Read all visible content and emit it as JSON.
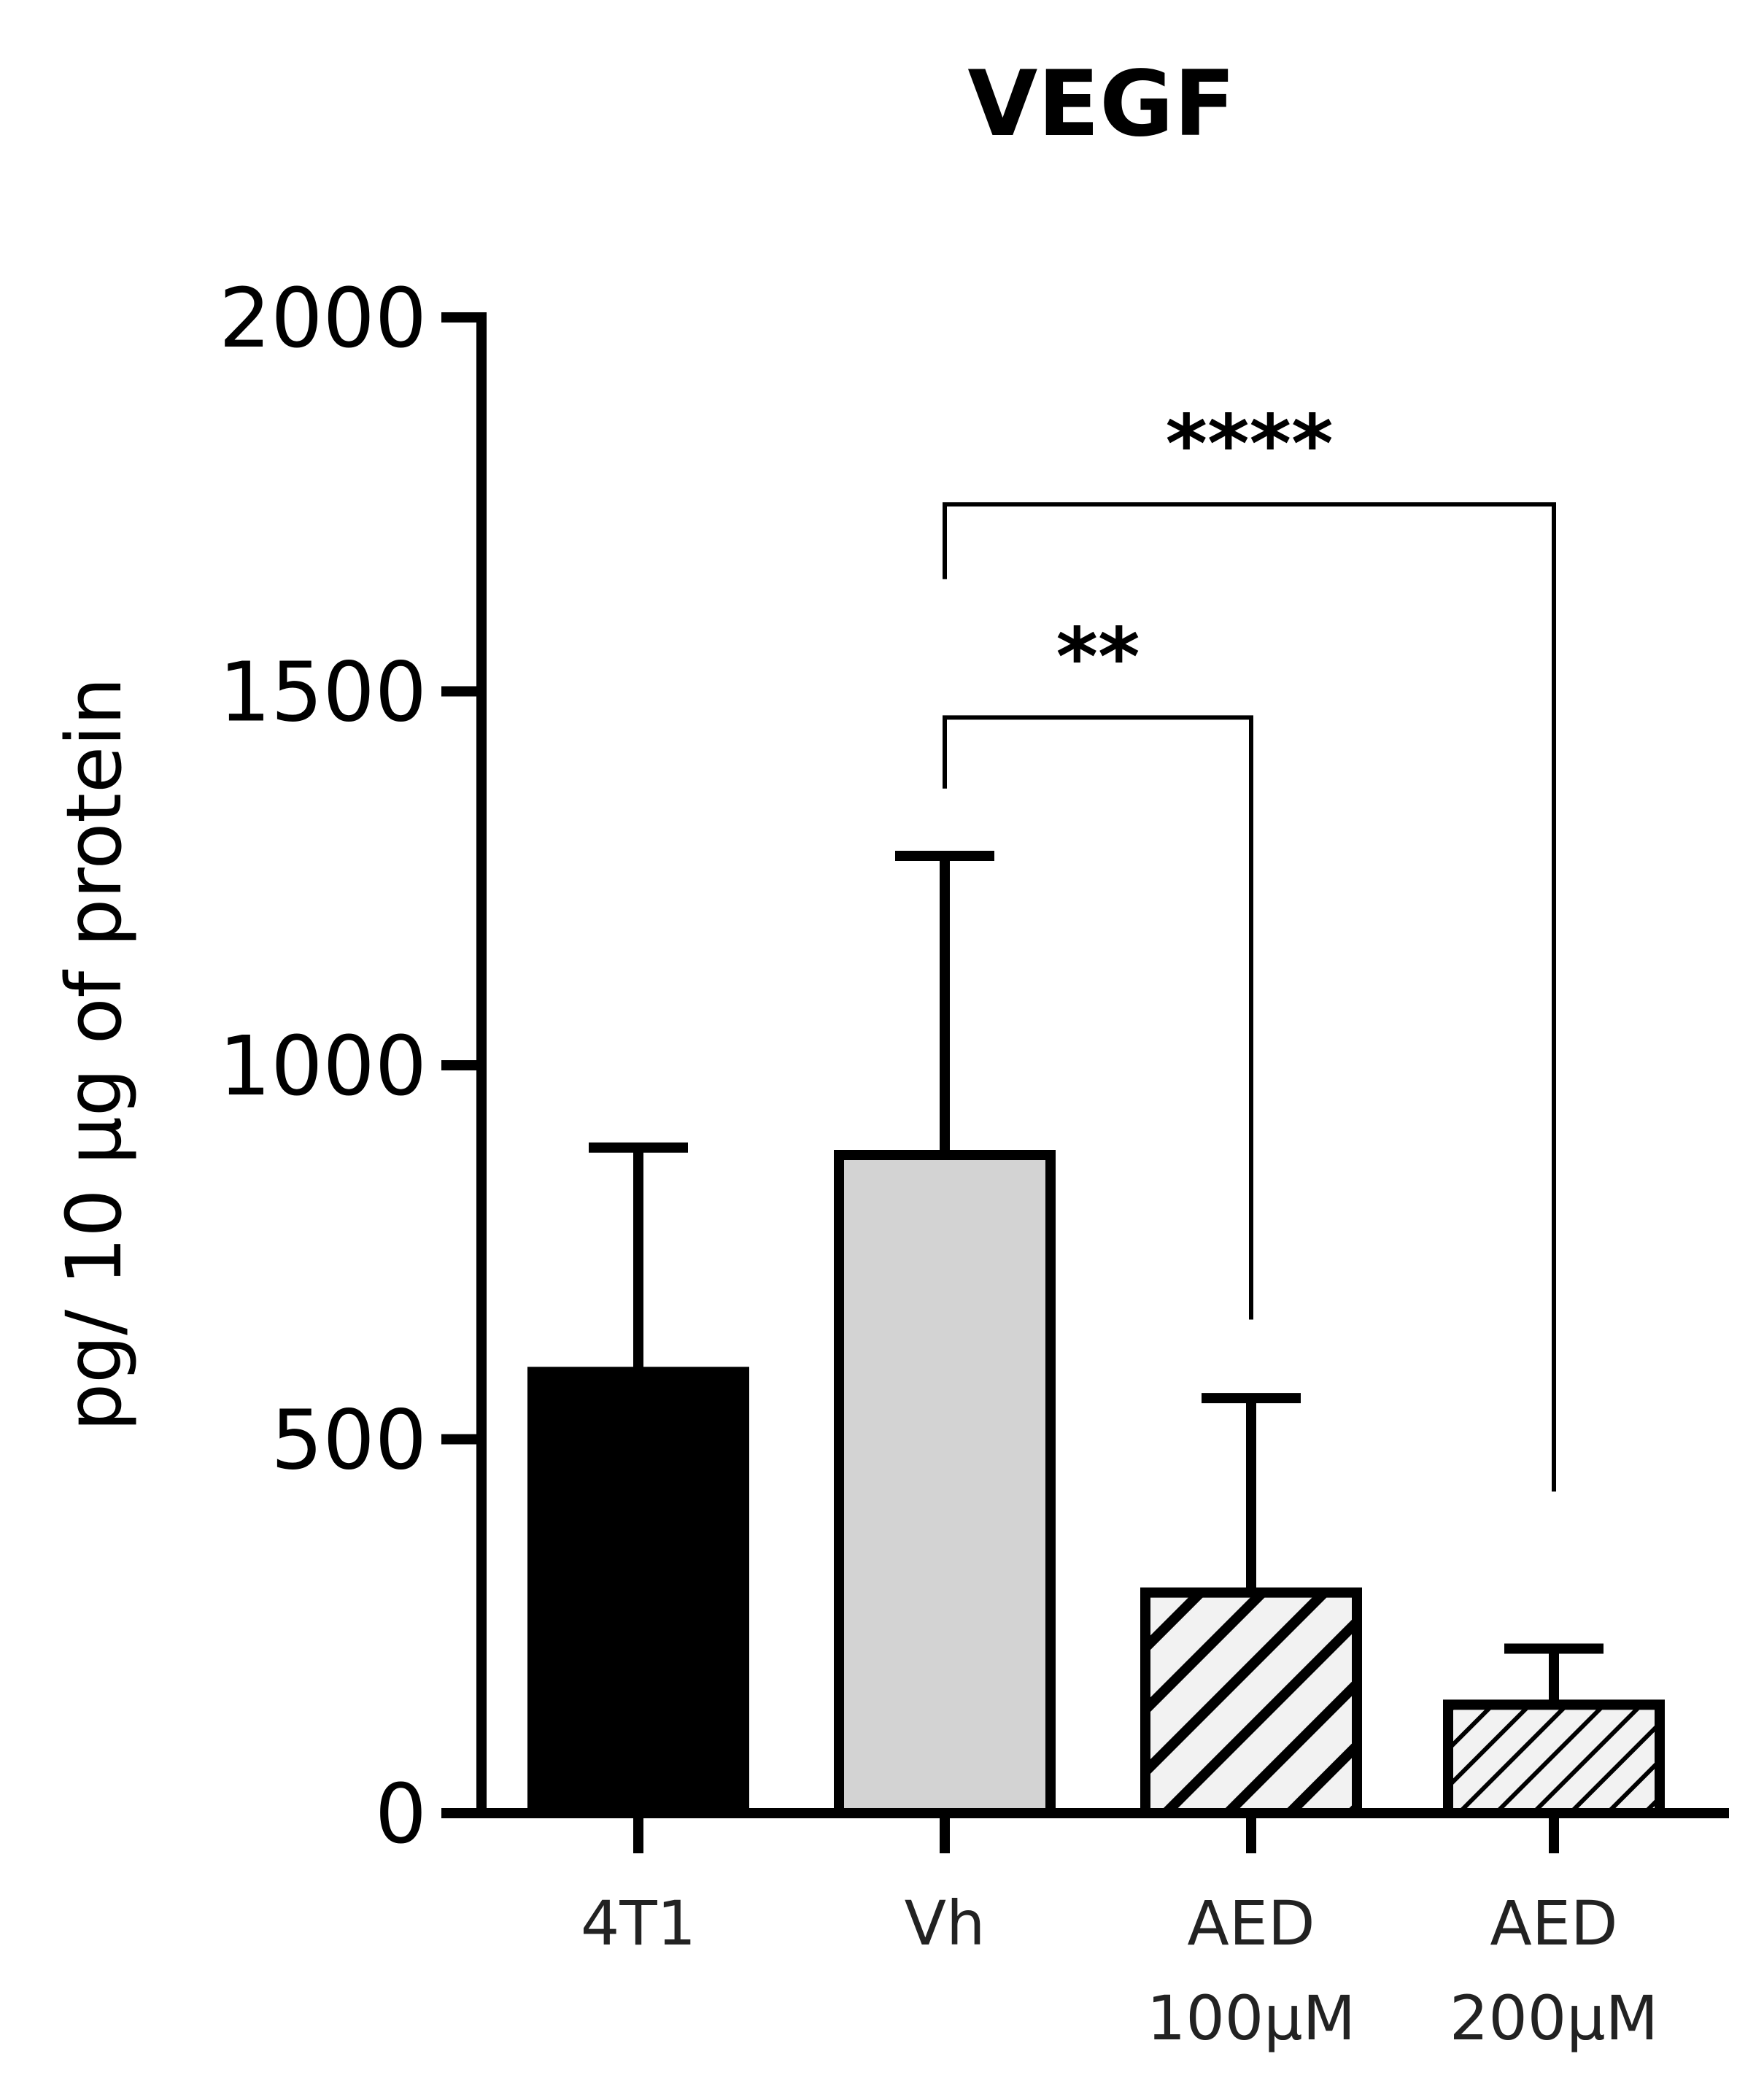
{
  "chart_data": {
    "type": "bar",
    "title": "VEGF",
    "ylabel": "pg/ 10 µg of protein",
    "xlabel": "",
    "ylim": [
      0,
      2000
    ],
    "yticks": [
      0,
      500,
      1000,
      1500,
      2000
    ],
    "categories": [
      {
        "lines": [
          "4T1"
        ]
      },
      {
        "lines": [
          "Vh"
        ]
      },
      {
        "lines": [
          "AED",
          "100µM"
        ]
      },
      {
        "lines": [
          "AED",
          "200µM"
        ]
      }
    ],
    "values": [
      590,
      880,
      295,
      145
    ],
    "errors": [
      300,
      400,
      260,
      75
    ],
    "fills": [
      "solid-black",
      "solid-lightgray",
      "hatch-wide",
      "hatch-narrow"
    ],
    "colors": {
      "black": "#000000",
      "lightgray": "#d3d3d3",
      "hatchbg": "#f2f2f2"
    },
    "significance": [
      {
        "from": 1,
        "to": 3,
        "label": "****",
        "y": 1750,
        "left_end": 1650,
        "right_end": 430
      },
      {
        "from": 1,
        "to": 2,
        "label": "**",
        "y": 1465,
        "left_end": 1370,
        "right_end": 660
      }
    ]
  }
}
